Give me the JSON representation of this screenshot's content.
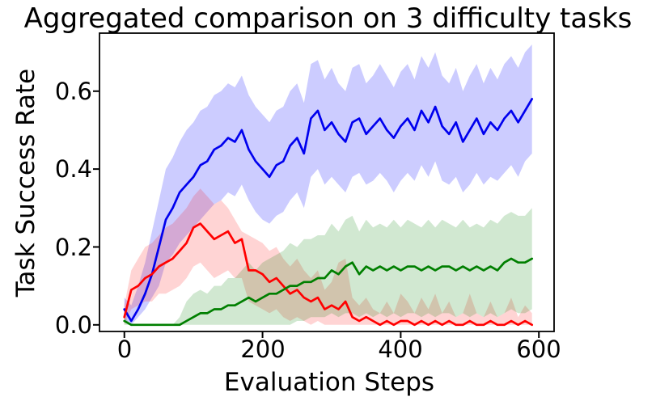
{
  "figure": {
    "background": "#ffffff"
  },
  "chart_data": {
    "type": "line",
    "title": "Aggregated comparison on 3 difficulty tasks",
    "xlabel": "Evaluation Steps",
    "ylabel": "Task Success Rate",
    "xlim": [
      -36,
      622
    ],
    "ylim": [
      -0.017,
      0.749
    ],
    "xticks": [
      0,
      200,
      400,
      600
    ],
    "xtick_labels": [
      "0",
      "200",
      "400",
      "600"
    ],
    "yticks": [
      0.0,
      0.2,
      0.4,
      0.6
    ],
    "ytick_labels": [
      "0.0",
      "0.2",
      "0.4",
      "0.6"
    ],
    "grid": false,
    "legend": "none",
    "axis_color": "#000000",
    "x": [
      0,
      10,
      20,
      30,
      40,
      50,
      60,
      70,
      80,
      90,
      100,
      110,
      120,
      130,
      140,
      150,
      160,
      170,
      180,
      190,
      200,
      210,
      220,
      230,
      240,
      250,
      260,
      270,
      280,
      290,
      300,
      310,
      320,
      330,
      340,
      350,
      360,
      370,
      380,
      390,
      400,
      410,
      420,
      430,
      440,
      450,
      460,
      470,
      480,
      490,
      500,
      510,
      520,
      530,
      540,
      550,
      560,
      570,
      580,
      590
    ],
    "series": [
      {
        "name": "blue-series",
        "color": "#0000ee",
        "band_color": "rgba(0,0,255,0.20)",
        "mean": [
          0.04,
          0.01,
          0.04,
          0.08,
          0.13,
          0.2,
          0.27,
          0.3,
          0.34,
          0.36,
          0.38,
          0.41,
          0.42,
          0.45,
          0.46,
          0.48,
          0.47,
          0.5,
          0.45,
          0.42,
          0.4,
          0.38,
          0.41,
          0.42,
          0.46,
          0.48,
          0.44,
          0.53,
          0.55,
          0.5,
          0.52,
          0.49,
          0.47,
          0.52,
          0.53,
          0.49,
          0.51,
          0.53,
          0.5,
          0.48,
          0.51,
          0.53,
          0.5,
          0.55,
          0.52,
          0.56,
          0.51,
          0.49,
          0.52,
          0.47,
          0.5,
          0.53,
          0.49,
          0.52,
          0.5,
          0.53,
          0.55,
          0.52,
          0.55,
          0.58
        ],
        "lo": [
          0.01,
          0.0,
          0.02,
          0.04,
          0.07,
          0.1,
          0.16,
          0.18,
          0.21,
          0.23,
          0.25,
          0.27,
          0.29,
          0.31,
          0.32,
          0.34,
          0.33,
          0.36,
          0.32,
          0.29,
          0.27,
          0.26,
          0.28,
          0.29,
          0.32,
          0.34,
          0.3,
          0.38,
          0.4,
          0.36,
          0.38,
          0.36,
          0.34,
          0.38,
          0.39,
          0.36,
          0.37,
          0.39,
          0.37,
          0.34,
          0.37,
          0.39,
          0.37,
          0.41,
          0.38,
          0.42,
          0.37,
          0.36,
          0.38,
          0.34,
          0.36,
          0.39,
          0.36,
          0.38,
          0.37,
          0.39,
          0.41,
          0.38,
          0.42,
          0.44
        ],
        "hi": [
          0.07,
          0.05,
          0.1,
          0.16,
          0.24,
          0.32,
          0.4,
          0.43,
          0.47,
          0.5,
          0.52,
          0.55,
          0.56,
          0.59,
          0.6,
          0.62,
          0.61,
          0.64,
          0.59,
          0.56,
          0.54,
          0.52,
          0.55,
          0.56,
          0.6,
          0.62,
          0.57,
          0.67,
          0.68,
          0.63,
          0.66,
          0.62,
          0.6,
          0.66,
          0.67,
          0.62,
          0.64,
          0.67,
          0.64,
          0.61,
          0.65,
          0.67,
          0.63,
          0.69,
          0.66,
          0.7,
          0.64,
          0.62,
          0.66,
          0.6,
          0.64,
          0.67,
          0.62,
          0.66,
          0.63,
          0.67,
          0.69,
          0.66,
          0.7,
          0.72
        ]
      },
      {
        "name": "red-series",
        "color": "#ff0000",
        "band_color": "rgba(255,0,0,0.17)",
        "mean": [
          0.02,
          0.09,
          0.1,
          0.12,
          0.13,
          0.15,
          0.16,
          0.17,
          0.19,
          0.21,
          0.25,
          0.26,
          0.24,
          0.22,
          0.23,
          0.24,
          0.21,
          0.22,
          0.14,
          0.14,
          0.13,
          0.11,
          0.12,
          0.1,
          0.08,
          0.09,
          0.07,
          0.06,
          0.07,
          0.04,
          0.05,
          0.04,
          0.06,
          0.02,
          0.01,
          0.02,
          0.01,
          0.0,
          0.01,
          0.0,
          0.01,
          0.01,
          0.0,
          0.01,
          0.0,
          0.01,
          0.0,
          0.01,
          0.0,
          0.0,
          0.01,
          0.0,
          0.0,
          0.01,
          0.0,
          0.0,
          0.01,
          0.0,
          0.01,
          0.0
        ],
        "lo": [
          0.0,
          0.04,
          0.05,
          0.06,
          0.06,
          0.08,
          0.08,
          0.09,
          0.1,
          0.12,
          0.15,
          0.16,
          0.14,
          0.12,
          0.13,
          0.14,
          0.12,
          0.12,
          0.06,
          0.05,
          0.04,
          0.03,
          0.04,
          0.02,
          0.01,
          0.02,
          0.01,
          0.0,
          0.01,
          0.0,
          0.0,
          0.0,
          0.0,
          0.0,
          0.0,
          0.0,
          0.0,
          0.0,
          0.0,
          0.0,
          0.0,
          0.0,
          0.0,
          0.0,
          0.0,
          0.0,
          0.0,
          0.0,
          0.0,
          0.0,
          0.0,
          0.0,
          0.0,
          0.0,
          0.0,
          0.0,
          0.0,
          0.0,
          0.0,
          0.0
        ],
        "hi": [
          0.05,
          0.14,
          0.17,
          0.2,
          0.21,
          0.23,
          0.25,
          0.26,
          0.28,
          0.3,
          0.33,
          0.35,
          0.33,
          0.31,
          0.32,
          0.3,
          0.27,
          0.24,
          0.23,
          0.22,
          0.21,
          0.19,
          0.2,
          0.17,
          0.15,
          0.17,
          0.14,
          0.12,
          0.14,
          0.09,
          0.11,
          0.16,
          0.17,
          0.07,
          0.05,
          0.07,
          0.04,
          0.03,
          0.06,
          0.03,
          0.08,
          0.06,
          0.03,
          0.07,
          0.04,
          0.08,
          0.03,
          0.06,
          0.02,
          0.03,
          0.08,
          0.03,
          0.02,
          0.06,
          0.02,
          0.03,
          0.07,
          0.02,
          0.05,
          0.03
        ]
      },
      {
        "name": "green-series",
        "color": "#007f00",
        "band_color": "rgba(0,128,0,0.18)",
        "mean": [
          0.01,
          0.0,
          0.0,
          0.0,
          0.0,
          0.0,
          0.0,
          0.0,
          0.0,
          0.01,
          0.02,
          0.03,
          0.03,
          0.04,
          0.04,
          0.05,
          0.05,
          0.06,
          0.07,
          0.06,
          0.07,
          0.08,
          0.08,
          0.09,
          0.1,
          0.1,
          0.11,
          0.11,
          0.12,
          0.12,
          0.14,
          0.13,
          0.15,
          0.16,
          0.13,
          0.15,
          0.14,
          0.15,
          0.14,
          0.15,
          0.14,
          0.15,
          0.15,
          0.14,
          0.15,
          0.14,
          0.15,
          0.15,
          0.14,
          0.15,
          0.14,
          0.15,
          0.14,
          0.15,
          0.14,
          0.16,
          0.17,
          0.16,
          0.16,
          0.17
        ],
        "lo": [
          0.0,
          0.0,
          0.0,
          0.0,
          0.0,
          0.0,
          0.0,
          0.0,
          0.0,
          0.0,
          0.0,
          0.0,
          0.0,
          0.0,
          0.0,
          0.0,
          0.0,
          0.0,
          0.0,
          0.0,
          0.0,
          0.0,
          0.0,
          0.0,
          0.0,
          0.01,
          0.01,
          0.02,
          0.02,
          0.02,
          0.03,
          0.02,
          0.03,
          0.03,
          0.02,
          0.03,
          0.02,
          0.03,
          0.02,
          0.03,
          0.02,
          0.03,
          0.03,
          0.02,
          0.03,
          0.02,
          0.03,
          0.03,
          0.02,
          0.03,
          0.02,
          0.03,
          0.02,
          0.03,
          0.02,
          0.03,
          0.04,
          0.03,
          0.03,
          0.04
        ],
        "hi": [
          0.02,
          0.0,
          0.0,
          0.0,
          0.0,
          0.0,
          0.0,
          0.0,
          0.02,
          0.06,
          0.08,
          0.09,
          0.08,
          0.1,
          0.1,
          0.12,
          0.12,
          0.14,
          0.16,
          0.14,
          0.16,
          0.17,
          0.18,
          0.19,
          0.21,
          0.2,
          0.22,
          0.22,
          0.23,
          0.23,
          0.26,
          0.24,
          0.27,
          0.28,
          0.24,
          0.27,
          0.25,
          0.26,
          0.25,
          0.27,
          0.25,
          0.27,
          0.26,
          0.25,
          0.27,
          0.25,
          0.27,
          0.26,
          0.25,
          0.27,
          0.25,
          0.26,
          0.25,
          0.27,
          0.26,
          0.28,
          0.29,
          0.28,
          0.28,
          0.3
        ]
      }
    ]
  }
}
